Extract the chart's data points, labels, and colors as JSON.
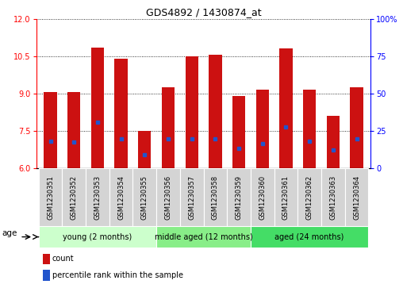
{
  "title": "GDS4892 / 1430874_at",
  "samples": [
    "GSM1230351",
    "GSM1230352",
    "GSM1230353",
    "GSM1230354",
    "GSM1230355",
    "GSM1230356",
    "GSM1230357",
    "GSM1230358",
    "GSM1230359",
    "GSM1230360",
    "GSM1230361",
    "GSM1230362",
    "GSM1230363",
    "GSM1230364"
  ],
  "counts": [
    9.05,
    9.05,
    10.85,
    10.4,
    7.5,
    9.25,
    10.5,
    10.55,
    8.9,
    9.15,
    10.8,
    9.15,
    8.1,
    9.25
  ],
  "percentile_ranks": [
    7.1,
    7.05,
    7.85,
    7.2,
    6.55,
    7.2,
    7.2,
    7.2,
    6.8,
    7.0,
    7.65,
    7.1,
    6.75,
    7.2
  ],
  "ymin": 6,
  "ymax": 12,
  "yticks_left": [
    6,
    7.5,
    9,
    10.5,
    12
  ],
  "yticks_right_vals": [
    0,
    25,
    50,
    75,
    100
  ],
  "bar_color": "#cc1111",
  "marker_color": "#2255cc",
  "bar_width": 0.55,
  "group_defs": [
    {
      "start": 0,
      "end": 4,
      "label": "young (2 months)",
      "color": "#ccffcc"
    },
    {
      "start": 5,
      "end": 8,
      "label": "middle aged (12 months)",
      "color": "#88ee88"
    },
    {
      "start": 9,
      "end": 13,
      "label": "aged (24 months)",
      "color": "#44dd66"
    }
  ],
  "age_label": "age",
  "legend_count": "count",
  "legend_percentile": "percentile rank within the sample",
  "title_fontsize": 9,
  "tick_fontsize": 7,
  "label_fontsize": 6,
  "group_fontsize": 7,
  "legend_fontsize": 7
}
